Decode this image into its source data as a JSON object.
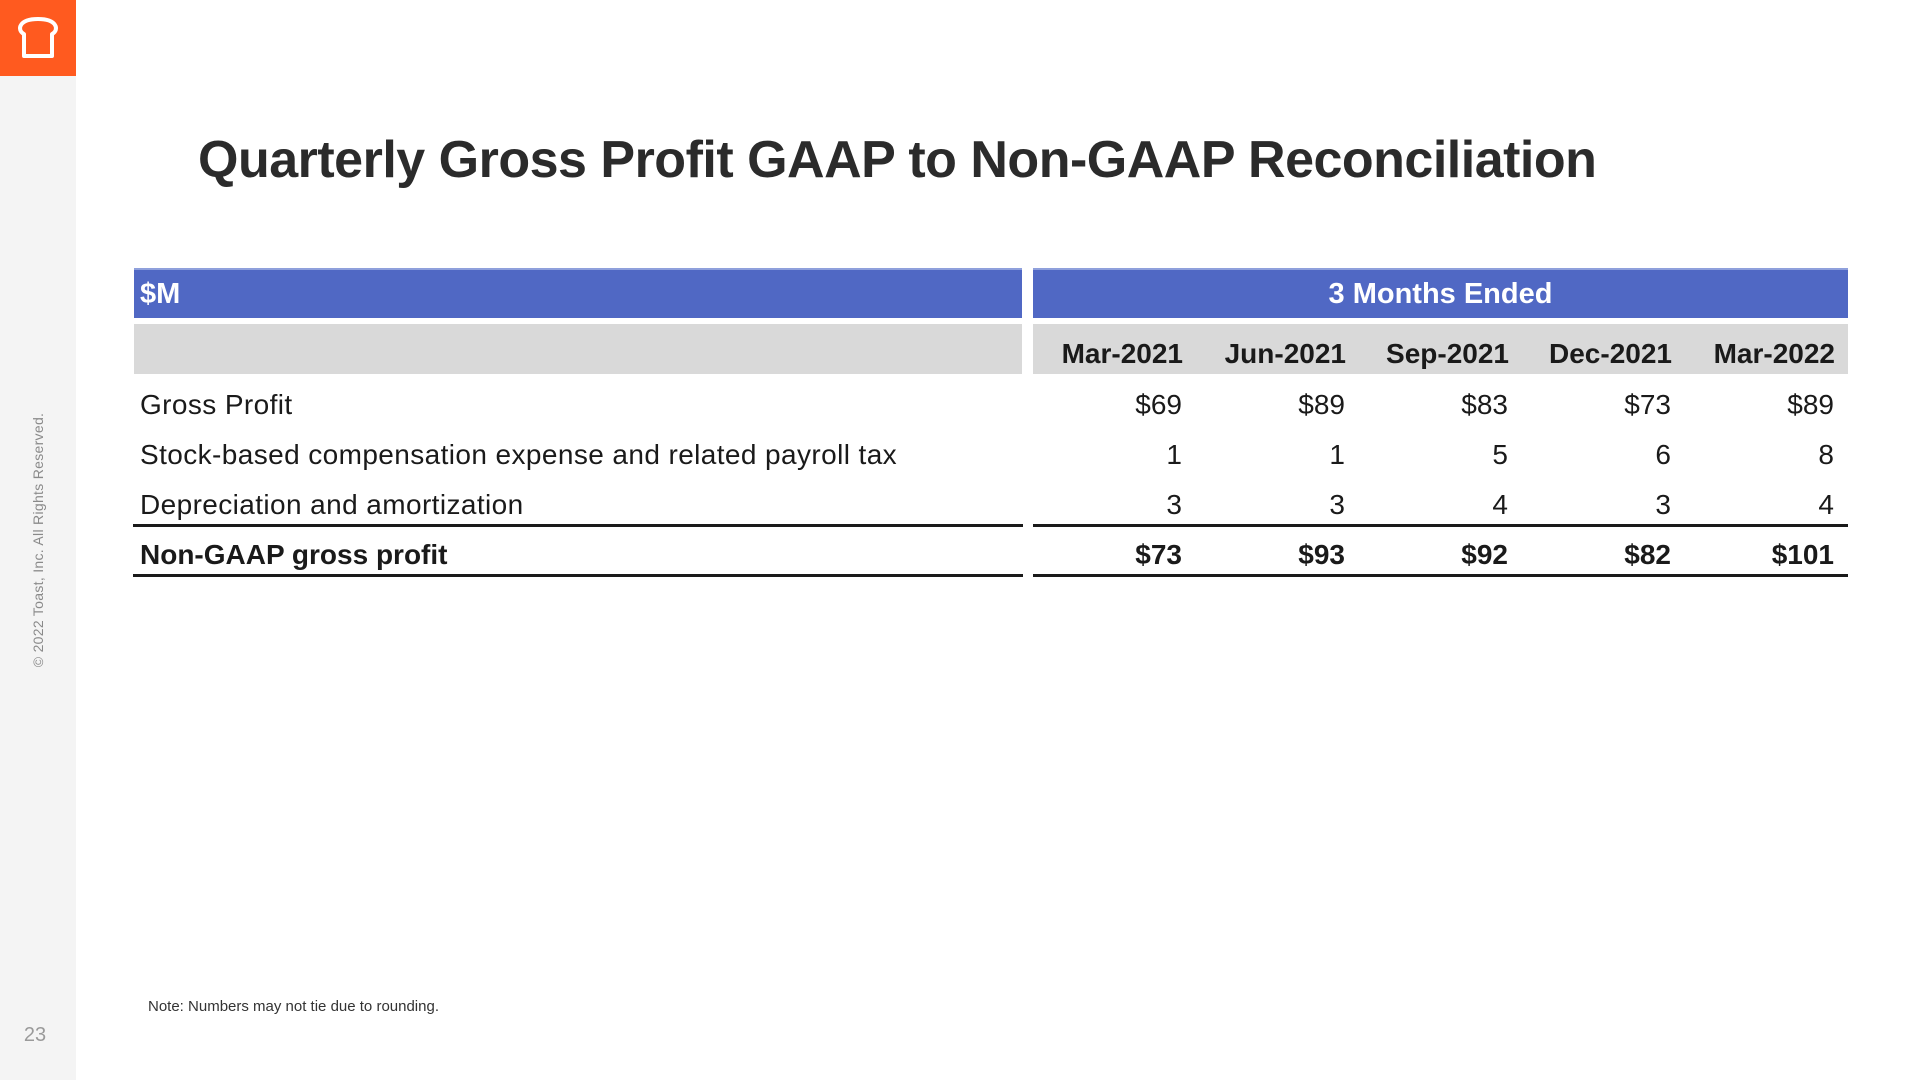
{
  "sidebar": {
    "logo_icon": "toast-bread-icon",
    "brand_color": "#ff5a1f",
    "copyright": "© 2022 Toast, Inc. All Rights Reserved.",
    "page_number": "23"
  },
  "title": "Quarterly Gross Profit GAAP to Non-GAAP Reconciliation",
  "table": {
    "header_color": "#5068c4",
    "unit_label": "$M",
    "period_label": "3 Months Ended",
    "columns": [
      "Mar-2021",
      "Jun-2021",
      "Sep-2021",
      "Dec-2021",
      "Mar-2022"
    ],
    "rows": [
      {
        "label": "Gross Profit",
        "values": [
          "$69",
          "$89",
          "$83",
          "$73",
          "$89"
        ],
        "bold": false
      },
      {
        "label": "Stock-based compensation expense and related payroll tax",
        "values": [
          "1",
          "1",
          "5",
          "6",
          "8"
        ],
        "bold": false
      },
      {
        "label": "Depreciation and amortization",
        "values": [
          "3",
          "3",
          "4",
          "3",
          "4"
        ],
        "bold": false
      },
      {
        "label": "Non-GAAP gross profit",
        "values": [
          "$73",
          "$93",
          "$92",
          "$82",
          "$101"
        ],
        "bold": true
      }
    ]
  },
  "note": "Note: Numbers may not tie due to rounding."
}
